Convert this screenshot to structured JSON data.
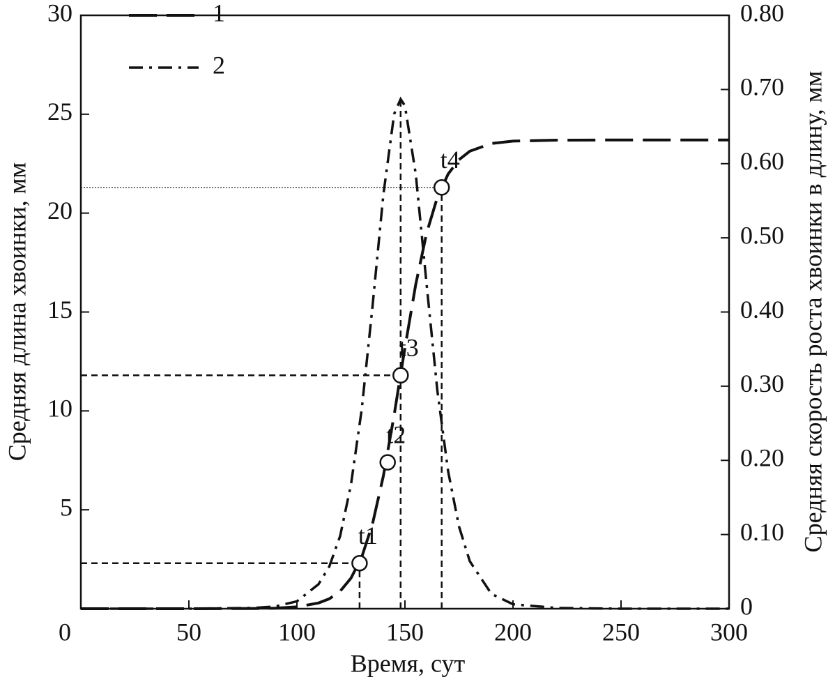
{
  "chart_data": {
    "type": "line",
    "xlabel": "Время, сут",
    "ylabel": "Средняя длина хвоинки, мм",
    "y2label": "Средняя скорость роста хвоинки в длину, мм",
    "x": [
      0,
      50,
      80,
      90,
      100,
      110,
      115,
      120,
      125,
      130,
      135,
      140,
      145,
      148,
      150,
      155,
      160,
      165,
      170,
      175,
      180,
      190,
      200,
      220,
      250,
      300
    ],
    "series": [
      {
        "name": "1",
        "color": "#111111",
        "style": "dashed",
        "axis": "y",
        "values": [
          0,
          0,
          0.009,
          0.028,
          0.09,
          0.29,
          0.5,
          0.88,
          1.54,
          2.61,
          4.29,
          6.71,
          9.79,
          11.85,
          13.2,
          16.4,
          18.98,
          20.8,
          21.98,
          22.7,
          23.13,
          23.52,
          23.64,
          23.69,
          23.7,
          23.7
        ]
      },
      {
        "name": "2",
        "color": "#111111",
        "style": "dashdot",
        "axis": "y2",
        "values": [
          0,
          0,
          0.001,
          0.003,
          0.01,
          0.033,
          0.057,
          0.098,
          0.167,
          0.269,
          0.408,
          0.558,
          0.667,
          0.687,
          0.678,
          0.586,
          0.438,
          0.294,
          0.185,
          0.111,
          0.064,
          0.02,
          0.006,
          0.001,
          0,
          0
        ]
      }
    ],
    "annotations": [
      {
        "label": "t1",
        "x": 129,
        "y": 2.3,
        "guides": {
          "h": "dashed",
          "v": "dashed"
        }
      },
      {
        "label": "t2",
        "x": 142,
        "y": 7.4
      },
      {
        "label": "t3",
        "x": 148,
        "y": 11.8,
        "guides": {
          "h": "dashed",
          "v": "dashed-to-peak"
        }
      },
      {
        "label": "t4",
        "x": 167,
        "y": 21.3,
        "guides": {
          "h": "dotted",
          "v": "dashed"
        }
      }
    ],
    "xlim": [
      0,
      300
    ],
    "xticks": [
      0,
      50,
      100,
      150,
      200,
      250,
      300
    ],
    "ylim": [
      0,
      30
    ],
    "yticks": [
      5,
      10,
      15,
      20,
      25,
      30
    ],
    "y2lim": [
      0,
      0.8
    ],
    "y2ticks": [
      0,
      {
        "value": 0.1,
        "label": "0.10"
      },
      {
        "value": 0.2,
        "label": "0.20"
      },
      {
        "value": 0.3,
        "label": "0.30"
      },
      {
        "value": 0.4,
        "label": "0.40"
      },
      {
        "value": 0.5,
        "label": "0.50"
      },
      {
        "value": 0.6,
        "label": "0.60"
      },
      {
        "value": 0.7,
        "label": "0.70"
      },
      {
        "value": 0.8,
        "label": "0.80"
      }
    ],
    "legend": "top-left",
    "grid": false
  }
}
